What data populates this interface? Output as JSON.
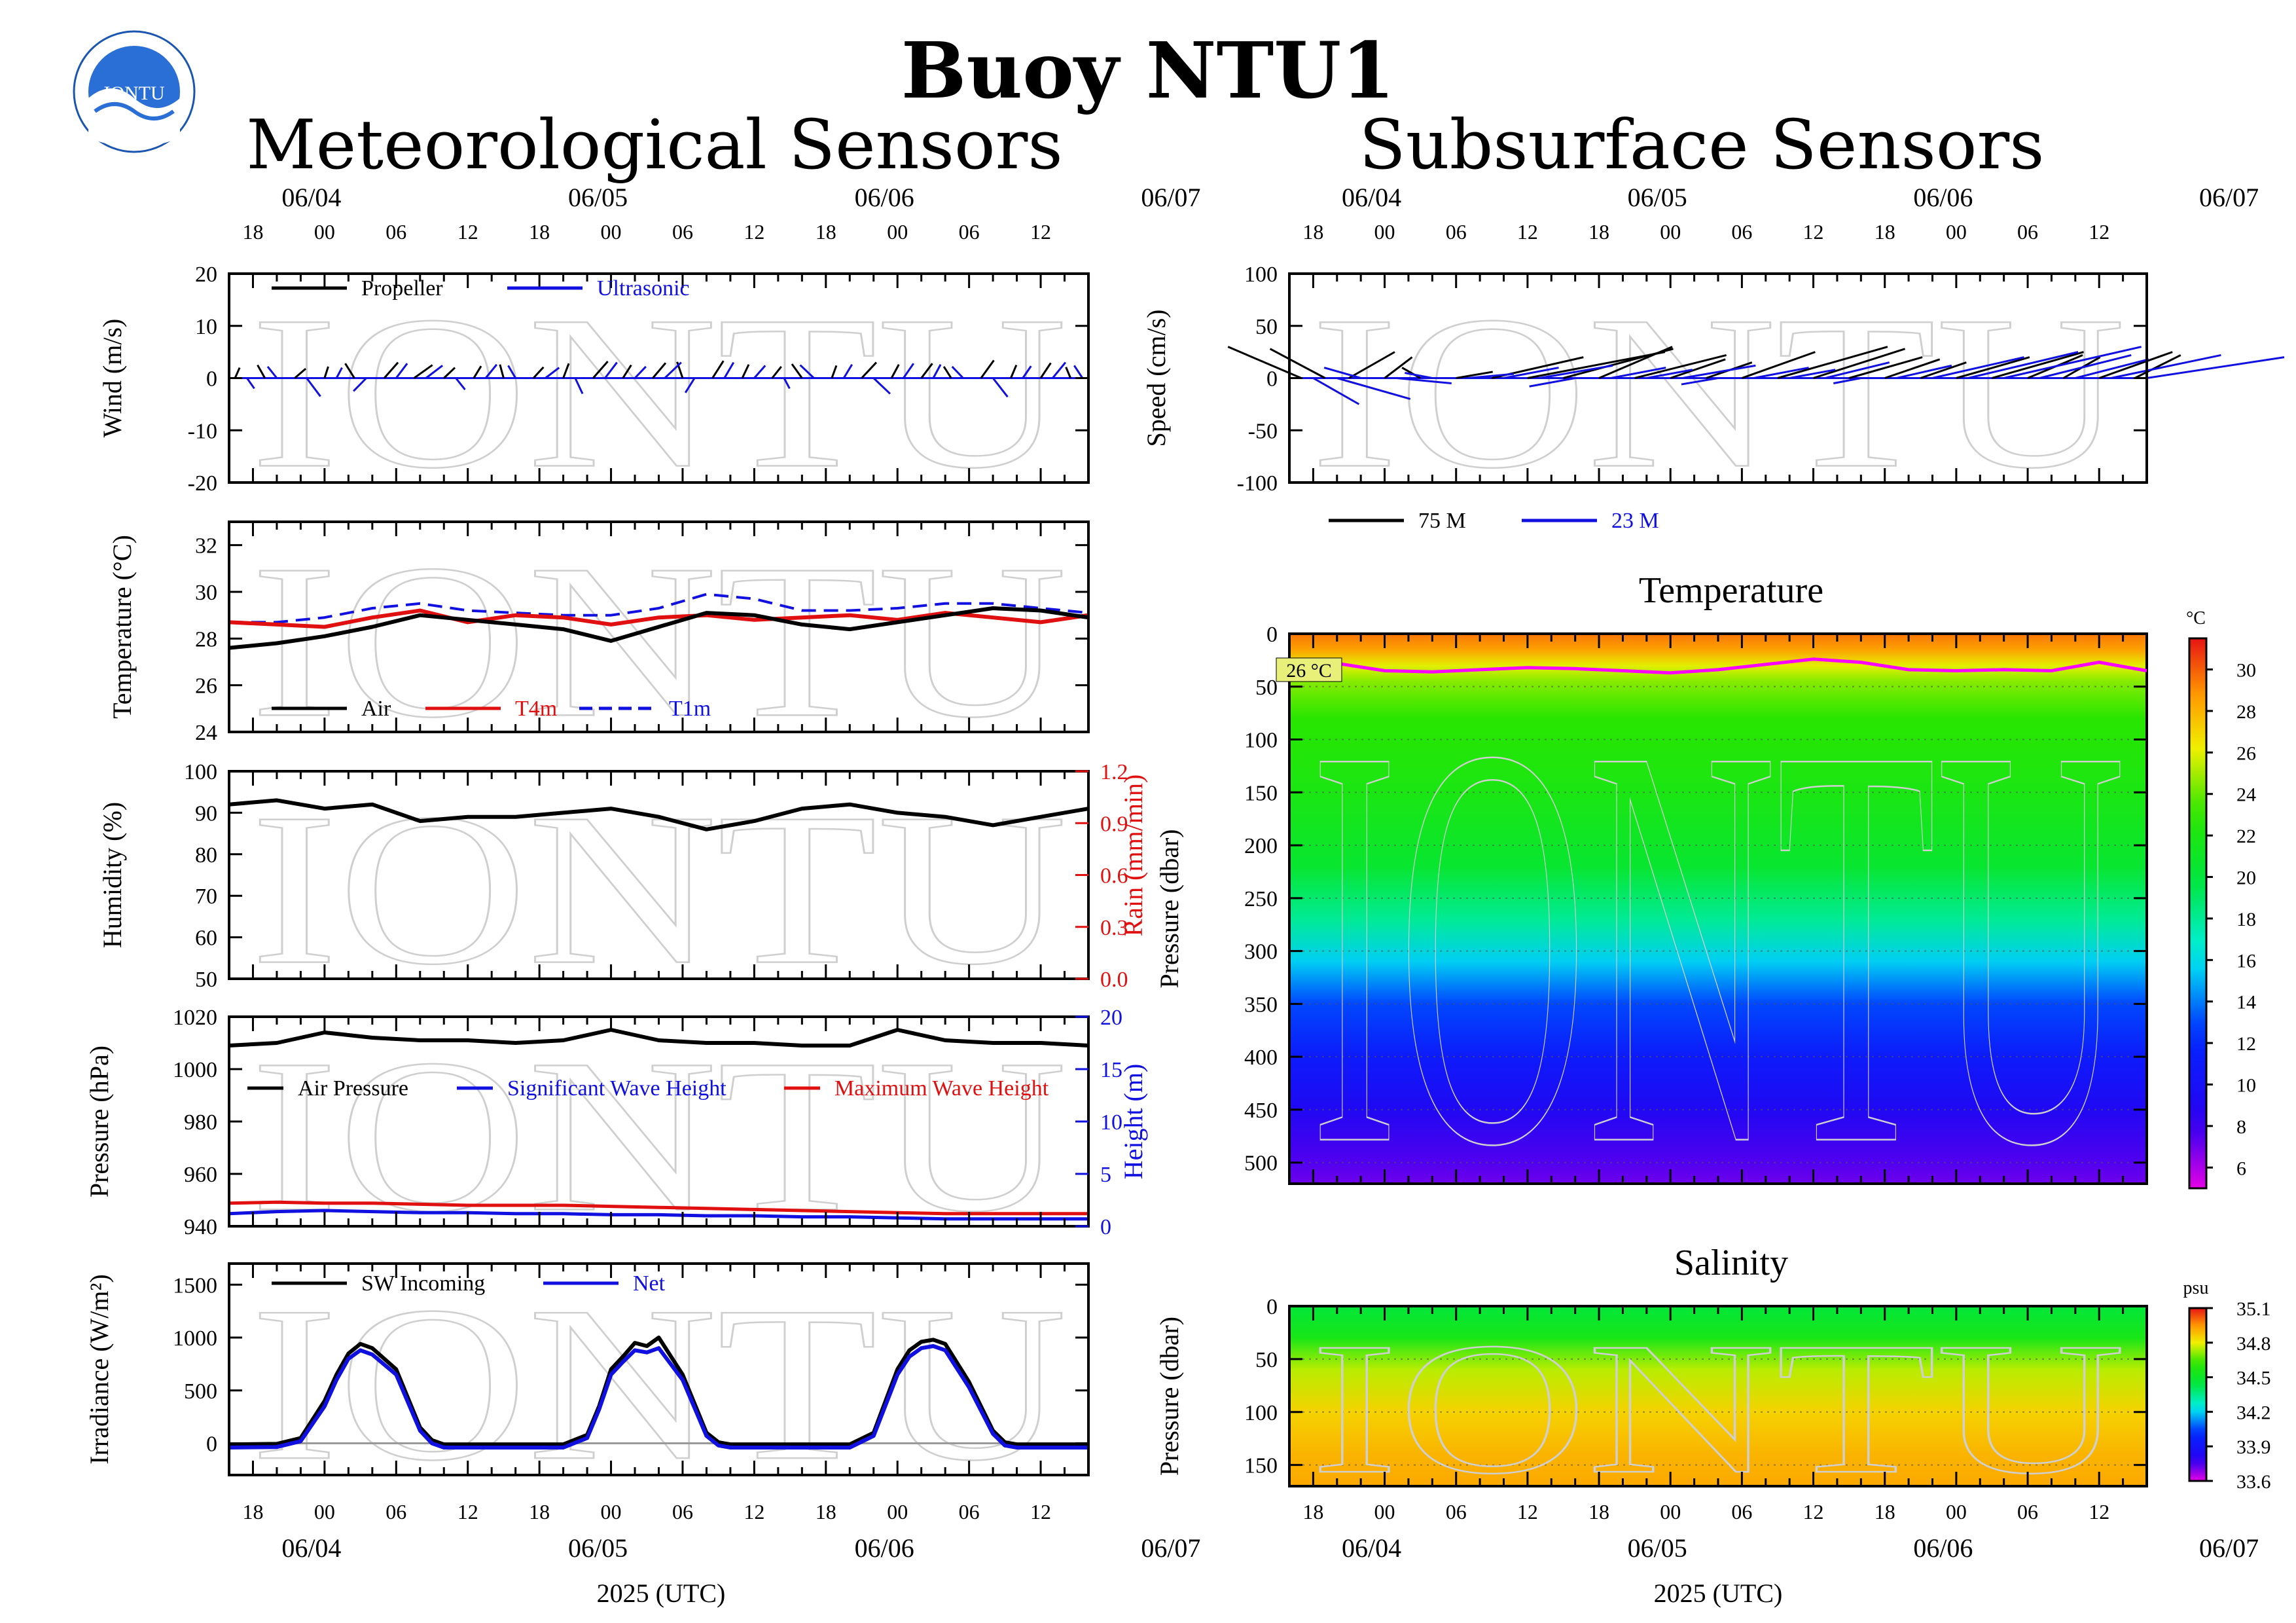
{
  "header": {
    "title": "Buoy NTU1",
    "left_section": "Meteorological Sensors",
    "right_section": "Subsurface Sensors",
    "logo_text": "IONTU"
  },
  "time_axis": {
    "date_labels": [
      "06/04",
      "06/05",
      "06/06",
      "06/07"
    ],
    "date_hours": [
      0,
      24,
      48,
      72
    ],
    "hour_labels": [
      "18",
      "00",
      "06",
      "12",
      "18",
      "00",
      "06",
      "12",
      "18",
      "00",
      "06",
      "12"
    ],
    "hour_ticks": [
      -6,
      0,
      6,
      12,
      18,
      24,
      30,
      36,
      42,
      48,
      54,
      60
    ],
    "range_hours": [
      -8,
      64
    ],
    "xlabel": "2025 (UTC)"
  },
  "watermark": "IONTU",
  "colors": {
    "black": "#000000",
    "blue": "#1010e0",
    "red": "#e01010",
    "magenta": "#ff00ff",
    "grid": "#999999"
  },
  "chart_data": [
    {
      "id": "wind",
      "type": "line",
      "ylabel": "Wind (m/s)",
      "ylim": [
        -20,
        20
      ],
      "yticks": [
        -20,
        -10,
        0,
        10,
        20
      ],
      "legend": [
        {
          "name": "Propeller",
          "color": "#000000"
        },
        {
          "name": "Ultrasonic",
          "color": "#1010e0"
        }
      ],
      "series": [
        {
          "name": "Propeller",
          "kind": "sticks",
          "x": [
            -7.5,
            -5,
            -2.5,
            0,
            2.5,
            5,
            7.5,
            10,
            12.5,
            15,
            17.5,
            20,
            22.5,
            25,
            27.5,
            30,
            32.5,
            35,
            37.5,
            40,
            42.5,
            45,
            47.5,
            50,
            52.5,
            55,
            57.5,
            60,
            62.5
          ],
          "u": [
            0.5,
            -0.8,
            1.2,
            0.4,
            -1,
            1.5,
            2,
            1.2,
            0.8,
            -0.4,
            1.1,
            0.6,
            1.6,
            0.9,
            1.4,
            -0.6,
            1.2,
            0.7,
            1,
            -1.1,
            0.5,
            1.6,
            0.8,
            1.2,
            -0.8,
            1.4,
            0.6,
            1.1,
            -0.5
          ],
          "v": [
            2,
            2.5,
            1.8,
            2.2,
            2.8,
            3,
            2.5,
            2,
            2.3,
            2.6,
            2.1,
            2.8,
            3.2,
            2.5,
            2.9,
            3.1,
            3.3,
            2.6,
            2.2,
            2.7,
            2.4,
            3,
            2.6,
            2.8,
            2.2,
            3.4,
            2.5,
            2.9,
            2.1
          ]
        },
        {
          "name": "Ultrasonic",
          "kind": "sticks",
          "x": [
            -6.5,
            -4,
            -1.5,
            1,
            3.5,
            6,
            8.5,
            11,
            13.5,
            16,
            18.5,
            21,
            23.5,
            26,
            28.5,
            31,
            33.5,
            36,
            38.5,
            41,
            43.5,
            46,
            48.5,
            51,
            53.5,
            56,
            58.5,
            61,
            63.5
          ],
          "u": [
            0.8,
            -1,
            1.5,
            0.6,
            -1.4,
            1.2,
            1.8,
            1,
            1.2,
            -0.8,
            1.5,
            0.8,
            1.3,
            1.2,
            1.8,
            -1,
            1,
            1.2,
            0.6,
            -1.5,
            0.9,
            1.8,
            1.1,
            0.8,
            -1.2,
            1.6,
            0.9,
            1.4,
            -0.9
          ],
          "v": [
            -2,
            2.2,
            -3.5,
            2,
            -2.5,
            2.8,
            2.4,
            -2.2,
            2.6,
            2.4,
            2,
            -3,
            3,
            2.2,
            3,
            -2.8,
            3,
            2.4,
            -2,
            2.5,
            2.6,
            -3,
            2.8,
            2.6,
            2.2,
            -3.6,
            2.3,
            3,
            2.4
          ]
        }
      ]
    },
    {
      "id": "temperature",
      "type": "line",
      "ylabel": "Temperature (°C)",
      "ylim": [
        24,
        33
      ],
      "yticks": [
        24,
        26,
        28,
        30,
        32
      ],
      "legend": [
        {
          "name": "Air",
          "color": "#000000",
          "dash": false
        },
        {
          "name": "T4m",
          "color": "#e01010",
          "dash": false
        },
        {
          "name": "T1m",
          "color": "#1010e0",
          "dash": true
        }
      ],
      "x": [
        -8,
        -4,
        0,
        4,
        8,
        12,
        16,
        20,
        24,
        28,
        32,
        36,
        40,
        44,
        48,
        52,
        56,
        60,
        64
      ],
      "series": [
        {
          "name": "Air",
          "values": [
            27.6,
            27.8,
            28.1,
            28.5,
            29.0,
            28.8,
            28.6,
            28.4,
            27.9,
            28.5,
            29.1,
            29.0,
            28.6,
            28.4,
            28.7,
            29.0,
            29.3,
            29.2,
            28.9
          ]
        },
        {
          "name": "T4m",
          "values": [
            28.7,
            28.6,
            28.5,
            28.9,
            29.2,
            28.7,
            29.0,
            28.9,
            28.6,
            28.9,
            29.0,
            28.8,
            28.9,
            29.0,
            28.8,
            29.1,
            28.9,
            28.7,
            29.0
          ]
        },
        {
          "name": "T1m",
          "values": [
            28.7,
            28.7,
            28.9,
            29.3,
            29.5,
            29.2,
            29.1,
            29.0,
            29.0,
            29.3,
            29.9,
            29.7,
            29.2,
            29.2,
            29.3,
            29.5,
            29.5,
            29.3,
            29.1
          ]
        }
      ]
    },
    {
      "id": "humidity",
      "type": "line",
      "ylabel": "Humidity (%)",
      "ylabel_right": "Rain (mm/min)",
      "ylim": [
        50,
        100
      ],
      "yticks": [
        50,
        60,
        70,
        80,
        90,
        100
      ],
      "ylim_right": [
        0,
        1.2
      ],
      "yticks_right": [
        "0.0",
        "0.3",
        "0.6",
        "0.9",
        "1.2"
      ],
      "x": [
        -8,
        -4,
        0,
        4,
        8,
        12,
        16,
        20,
        24,
        28,
        32,
        36,
        40,
        44,
        48,
        52,
        56,
        60,
        64
      ],
      "series": [
        {
          "name": "Humidity",
          "values": [
            92,
            93,
            91,
            92,
            88,
            89,
            89,
            90,
            91,
            89,
            86,
            88,
            91,
            92,
            90,
            89,
            87,
            89,
            91
          ]
        }
      ]
    },
    {
      "id": "pressure",
      "type": "line",
      "ylabel": "Pressure (hPa)",
      "ylabel_right": "Height (m)",
      "ylim": [
        940,
        1020
      ],
      "yticks": [
        940,
        960,
        980,
        1000,
        1020
      ],
      "ylim_right": [
        0,
        20
      ],
      "yticks_right": [
        0,
        5,
        10,
        15,
        20
      ],
      "legend": [
        {
          "name": "Air Pressure",
          "color": "#000000"
        },
        {
          "name": "Significant Wave Height",
          "color": "#1010e0"
        },
        {
          "name": "Maximum Wave Height",
          "color": "#e01010"
        }
      ],
      "x": [
        -8,
        -4,
        0,
        4,
        8,
        12,
        16,
        20,
        24,
        28,
        32,
        36,
        40,
        44,
        48,
        52,
        56,
        60,
        64
      ],
      "series": [
        {
          "name": "Air Pressure",
          "axis": "left",
          "values": [
            1009,
            1010,
            1014,
            1012,
            1011,
            1011,
            1010,
            1011,
            1015,
            1011,
            1010,
            1010,
            1009,
            1009,
            1015,
            1011,
            1010,
            1010,
            1009
          ]
        },
        {
          "name": "Significant Wave Height",
          "axis": "right",
          "values": [
            1.2,
            1.4,
            1.5,
            1.4,
            1.3,
            1.3,
            1.2,
            1.2,
            1.1,
            1.1,
            1.0,
            1.0,
            0.9,
            0.9,
            0.8,
            0.7,
            0.7,
            0.7,
            0.7
          ]
        },
        {
          "name": "Maximum Wave Height",
          "axis": "right",
          "values": [
            2.2,
            2.3,
            2.2,
            2.2,
            2.1,
            2.0,
            2.0,
            2.0,
            1.9,
            1.8,
            1.7,
            1.6,
            1.5,
            1.4,
            1.3,
            1.2,
            1.2,
            1.2,
            1.2
          ]
        }
      ]
    },
    {
      "id": "irradiance",
      "type": "line",
      "ylabel": "Irradiance (W/m²)",
      "ylim": [
        -300,
        1700
      ],
      "yticks": [
        0,
        500,
        1000,
        1500
      ],
      "legend": [
        {
          "name": "SW Incoming",
          "color": "#000000"
        },
        {
          "name": "Net",
          "color": "#1010e0"
        }
      ],
      "x": [
        -8,
        -4,
        -2,
        0,
        1,
        2,
        3,
        4,
        6,
        8,
        9,
        10,
        12,
        16,
        20,
        22,
        23,
        24,
        25,
        26,
        27,
        28,
        30,
        32,
        33,
        34,
        36,
        40,
        44,
        46,
        47,
        48,
        49,
        50,
        51,
        52,
        54,
        56,
        57,
        58,
        60,
        64
      ],
      "series": [
        {
          "name": "SW Incoming",
          "values": [
            -10,
            -5,
            50,
            400,
            650,
            850,
            940,
            900,
            700,
            150,
            30,
            -10,
            -10,
            -10,
            -10,
            80,
            350,
            700,
            820,
            950,
            920,
            1000,
            650,
            100,
            10,
            -10,
            -10,
            -10,
            -10,
            100,
            400,
            700,
            880,
            960,
            980,
            940,
            580,
            120,
            10,
            -10,
            -10,
            -10
          ]
        },
        {
          "name": "Net",
          "values": [
            -40,
            -35,
            20,
            350,
            600,
            800,
            880,
            840,
            650,
            120,
            0,
            -40,
            -40,
            -40,
            -40,
            50,
            320,
            650,
            770,
            880,
            860,
            900,
            600,
            70,
            -20,
            -40,
            -40,
            -40,
            -40,
            70,
            360,
            650,
            820,
            900,
            920,
            880,
            530,
            90,
            -20,
            -40,
            -40,
            -40
          ]
        }
      ]
    },
    {
      "id": "current",
      "type": "line",
      "ylabel": "Speed (cm/s)",
      "ylim": [
        -100,
        100
      ],
      "yticks": [
        -100,
        -50,
        0,
        50,
        100
      ],
      "legend": [
        {
          "name": "75 M",
          "color": "#000000"
        },
        {
          "name": "23 M",
          "color": "#1010e0"
        }
      ],
      "series": [
        {
          "name": "75 M",
          "kind": "sticks",
          "x": [
            -7,
            -5,
            -3,
            0,
            3,
            6,
            9,
            12,
            15,
            18,
            21,
            24,
            27,
            30,
            33,
            36,
            39,
            42,
            45,
            48,
            51,
            54,
            57,
            60,
            63
          ],
          "u": [
            -8,
            -6,
            5,
            3,
            -2,
            4,
            10,
            15,
            12,
            8,
            10,
            6,
            5,
            8,
            12,
            10,
            8,
            6,
            5,
            8,
            10,
            6,
            4,
            8,
            5
          ],
          "v": [
            30,
            28,
            25,
            20,
            10,
            6,
            20,
            25,
            28,
            30,
            22,
            18,
            15,
            25,
            30,
            28,
            20,
            18,
            15,
            20,
            25,
            22,
            20,
            25,
            22
          ]
        },
        {
          "name": "23 M",
          "kind": "sticks",
          "x": [
            -6,
            -4,
            -2,
            1,
            4,
            7,
            10,
            13,
            16,
            19,
            22,
            25,
            28,
            31,
            34,
            37,
            40,
            43,
            46,
            49,
            52,
            55,
            58,
            61,
            64
          ],
          "u": [
            5,
            8,
            -4,
            6,
            -3,
            5,
            6,
            8,
            -5,
            6,
            5,
            8,
            -4,
            6,
            5,
            7,
            -3,
            6,
            10,
            12,
            15,
            10,
            8,
            12,
            15
          ],
          "v": [
            -25,
            -20,
            10,
            -5,
            5,
            4,
            10,
            12,
            -8,
            10,
            8,
            12,
            -6,
            10,
            8,
            15,
            -5,
            12,
            20,
            25,
            30,
            22,
            18,
            22,
            20
          ]
        }
      ]
    },
    {
      "id": "temperature-profile",
      "type": "heatmap",
      "title": "Temperature",
      "ylabel": "Pressure (dbar)",
      "ylim": [
        520,
        0
      ],
      "yticks": [
        0,
        50,
        100,
        150,
        200,
        250,
        300,
        350,
        400,
        450,
        500
      ],
      "unit": "°C",
      "colorbar_ticks": [
        6,
        8,
        10,
        12,
        14,
        16,
        18,
        20,
        22,
        24,
        26,
        28,
        30
      ],
      "colorbar_range": [
        5,
        31.5
      ],
      "depth_profile": [
        {
          "depth": 0,
          "value": 29.5
        },
        {
          "depth": 15,
          "value": 28.5
        },
        {
          "depth": 30,
          "value": 26
        },
        {
          "depth": 45,
          "value": 24.5
        },
        {
          "depth": 80,
          "value": 23
        },
        {
          "depth": 150,
          "value": 22
        },
        {
          "depth": 220,
          "value": 20.5
        },
        {
          "depth": 270,
          "value": 18
        },
        {
          "depth": 310,
          "value": 15.5
        },
        {
          "depth": 350,
          "value": 13
        },
        {
          "depth": 400,
          "value": 11
        },
        {
          "depth": 450,
          "value": 9
        },
        {
          "depth": 500,
          "value": 7.5
        },
        {
          "depth": 520,
          "value": 7
        }
      ],
      "isotherm_label": "26 °C",
      "isotherm": {
        "x": [
          -8,
          -4,
          0,
          4,
          8,
          12,
          16,
          20,
          24,
          28,
          32,
          36,
          40,
          44,
          48,
          52,
          56,
          60,
          64
        ],
        "depth": [
          27,
          28,
          35,
          36,
          34,
          32,
          33,
          35,
          37,
          34,
          29,
          24,
          27,
          34,
          35,
          34,
          35,
          27,
          35
        ]
      }
    },
    {
      "id": "salinity-profile",
      "type": "heatmap",
      "title": "Salinity",
      "ylabel": "Pressure (dbar)",
      "ylim": [
        170,
        0
      ],
      "yticks": [
        0,
        50,
        100,
        150
      ],
      "unit": "psu",
      "colorbar_ticks": [
        "33.6",
        "33.9",
        "34.2",
        "34.5",
        "34.8",
        "35.1"
      ],
      "colorbar_range": [
        33.6,
        35.1
      ],
      "depth_profile": [
        {
          "depth": 0,
          "value": 34.45
        },
        {
          "depth": 30,
          "value": 34.55
        },
        {
          "depth": 60,
          "value": 34.75
        },
        {
          "depth": 100,
          "value": 34.85
        },
        {
          "depth": 140,
          "value": 34.9
        },
        {
          "depth": 170,
          "value": 34.92
        }
      ]
    }
  ]
}
